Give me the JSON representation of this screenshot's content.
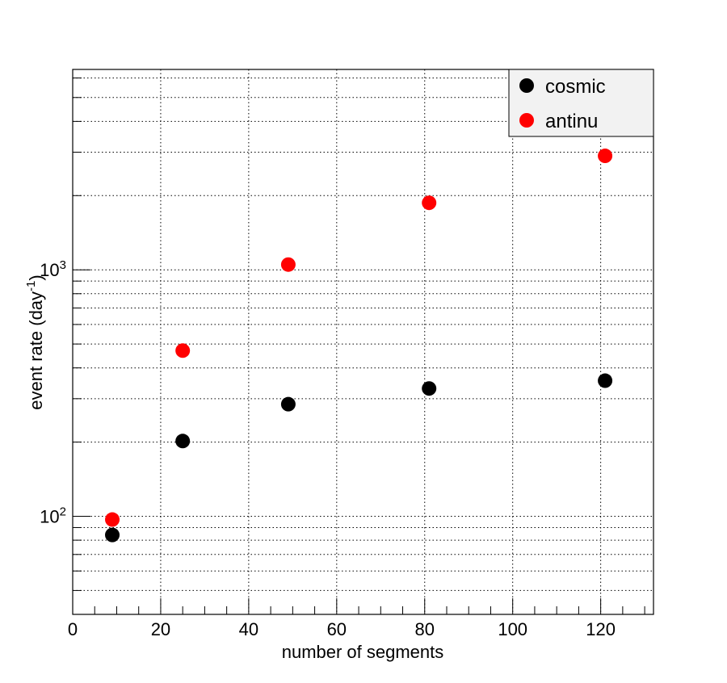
{
  "chart_data": {
    "type": "scatter",
    "xlabel": "number of segments",
    "ylabel_main": "event rate (day",
    "ylabel_sup": "-1",
    "ylabel_close": ")",
    "xlim": [
      0,
      132
    ],
    "ylim": [
      40,
      6500
    ],
    "yscale": "log",
    "grid": true,
    "legend_position": "top-right",
    "x_ticks": [
      "0",
      "20",
      "40",
      "60",
      "80",
      "100",
      "120"
    ],
    "y_ticks": [
      {
        "base": "10",
        "exp": "2"
      },
      {
        "base": "10",
        "exp": "3"
      }
    ],
    "series": [
      {
        "name": "cosmic",
        "color": "#000000",
        "x": [
          9,
          25,
          49,
          81,
          121
        ],
        "y": [
          84,
          202,
          285,
          330,
          355
        ]
      },
      {
        "name": "antinu",
        "color": "#ff0000",
        "x": [
          9,
          25,
          49,
          81,
          121
        ],
        "y": [
          97,
          470,
          1050,
          1870,
          2900
        ]
      }
    ]
  }
}
